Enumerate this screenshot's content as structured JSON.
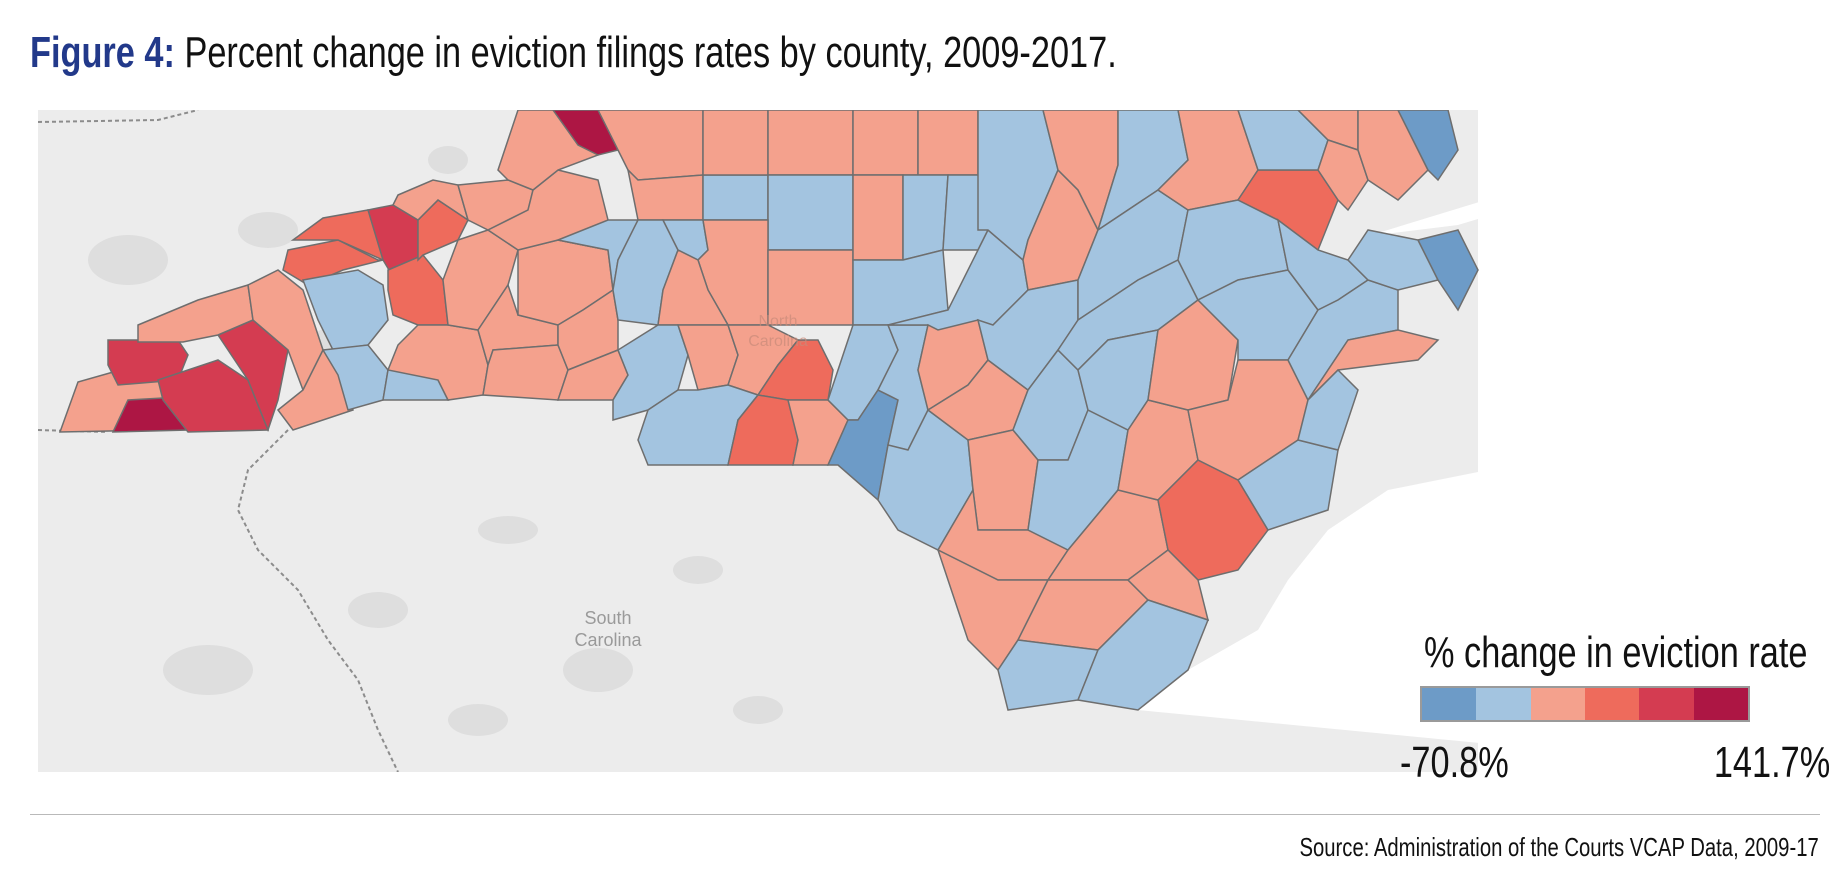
{
  "title": {
    "figure_label": "Figure 4:",
    "text": " Percent change in eviction filings rates by county, 2009-2017."
  },
  "map": {
    "state_labels": {
      "north_carolina": [
        "North",
        "Carolina"
      ],
      "south_carolina": [
        "South",
        "Carolina"
      ]
    },
    "colors": {
      "basemap": "#ececec",
      "basemap_shade": "#dedede",
      "county_border": "#6e6e6e"
    }
  },
  "legend": {
    "title": "% change in eviction rate",
    "min_label": "-70.8%",
    "max_label": "141.7%",
    "colors": [
      "#6d9bc7",
      "#a3c4e0",
      "#f4a18d",
      "#ee6b5c",
      "#d43c51",
      "#ad1644"
    ]
  },
  "source": "Source: Administration of the Courts VCAP Data, 2009-17"
}
